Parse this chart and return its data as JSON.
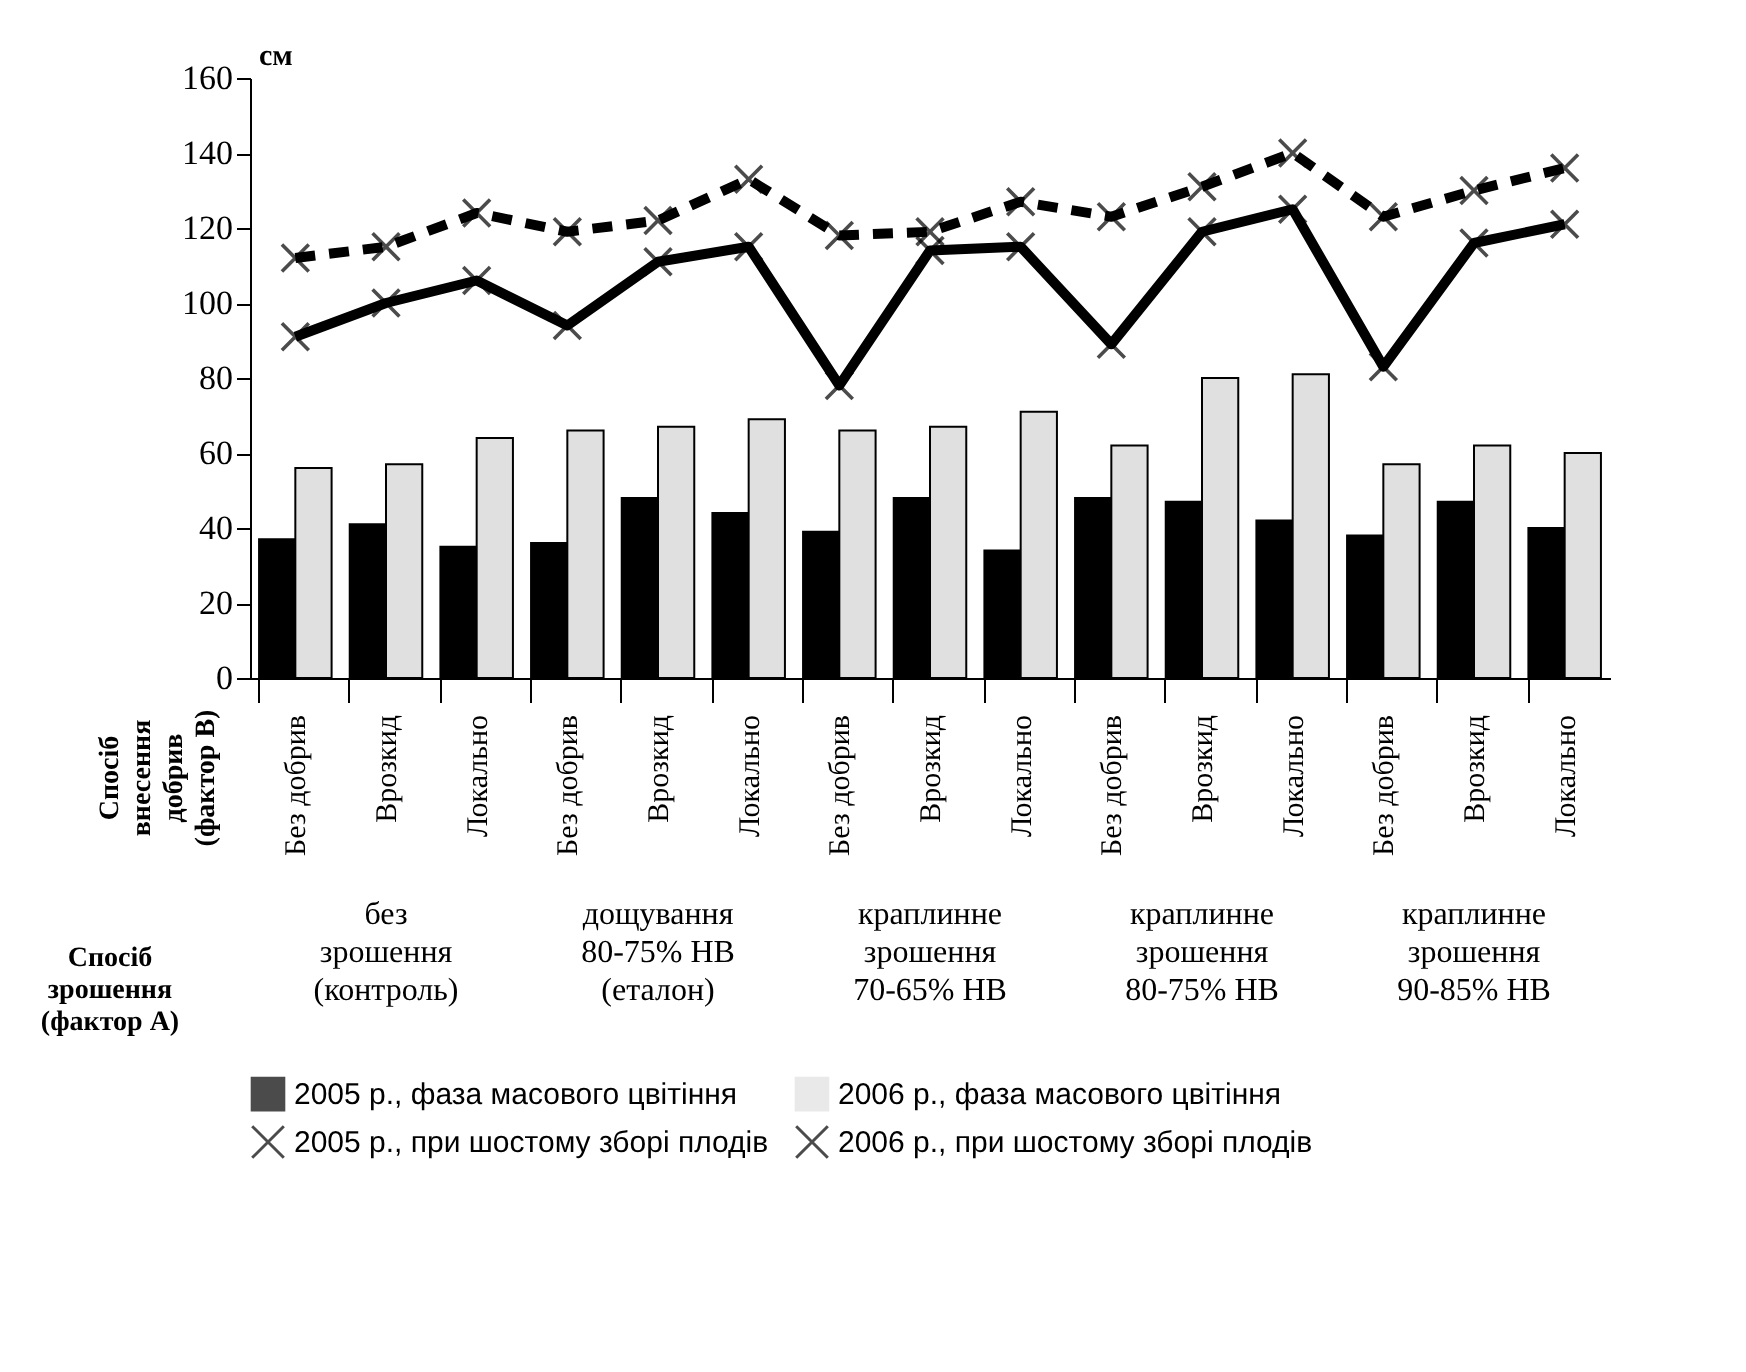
{
  "chart_data": {
    "type": "bar",
    "ylabel": "см",
    "categories": [
      "Без добрив",
      "Врозкид",
      "Локально",
      "Без добрив",
      "Врозкид",
      "Локально",
      "Без добрив",
      "Врозкид",
      "Локально",
      "Без добрив",
      "Врозкид",
      "Локально",
      "Без добрив",
      "Врозкид",
      "Локально"
    ],
    "series": [
      {
        "name": "2005 р., фаза масового цвітіння",
        "color": "#000000",
        "values": [
          37,
          41,
          35,
          36,
          48,
          44,
          39,
          48,
          34,
          48,
          47,
          42,
          38,
          47,
          40
        ]
      },
      {
        "name": "2006 р., фаза масового цвітіння",
        "color": "#e0e0e0",
        "values": [
          56,
          57,
          64,
          66,
          67,
          69,
          66,
          67,
          71,
          62,
          80,
          81,
          57,
          62,
          60
        ]
      },
      {
        "name": "2005 р., при шостому зборі плодів",
        "type": "line",
        "color": "#000000",
        "marker": "cross",
        "line_style": "solid",
        "values": [
          91,
          100,
          106,
          94,
          111,
          115,
          78,
          114,
          115,
          89,
          119,
          125,
          83,
          116,
          121
        ]
      },
      {
        "name": "2006 р., при шостому зборі плодів",
        "type": "line",
        "color": "#000000",
        "marker": "cross",
        "line_style": "dashed",
        "values": [
          112,
          115,
          124,
          119,
          122,
          133,
          118,
          119,
          127,
          123,
          131,
          140,
          123,
          130,
          136
        ]
      }
    ],
    "ylim": [
      0,
      160
    ],
    "yticks": [
      0,
      20,
      40,
      60,
      80,
      100,
      120,
      140,
      160
    ],
    "legend": "bottom",
    "annotations": [
      "Спосіб\nвнесення\nдобрив\n(фактор В)",
      "Спосіб\nзрошення\n(фактор А)",
      "без\nзрошення\n(контроль)",
      "дощування\n80-75% НВ\n(еталон)",
      "краплинне\nзрошення\n70-65% НВ",
      "краплинне\nзрошення\n80-75% НВ",
      "краплинне\nзрошення\n90-85% НВ"
    ]
  }
}
